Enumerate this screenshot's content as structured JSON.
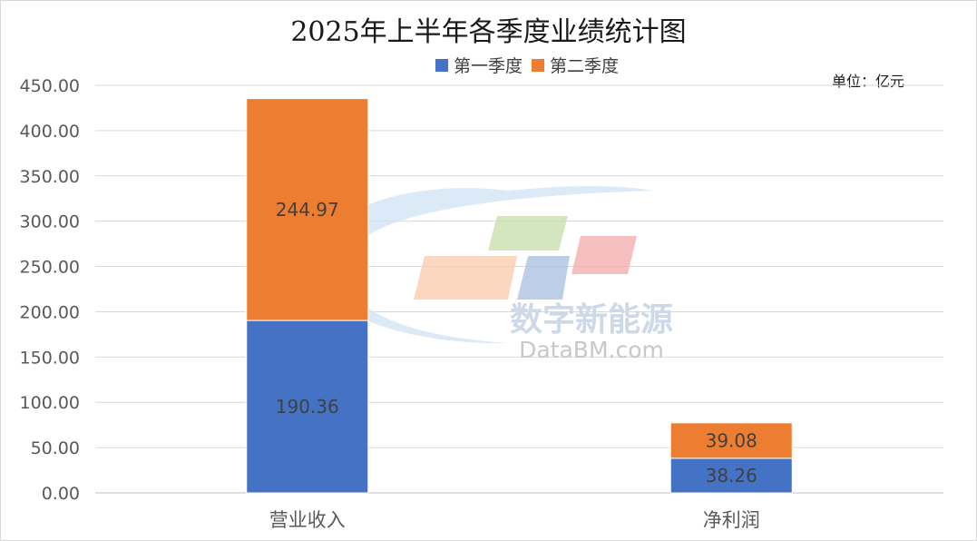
{
  "chart_data": {
    "type": "bar",
    "stacked": true,
    "title": "2025年上半年各季度业绩统计图",
    "unit_label": "单位：亿元",
    "categories": [
      "营业收入",
      "净利润"
    ],
    "series": [
      {
        "name": "第一季度",
        "values": [
          190.36,
          38.26
        ],
        "labels": [
          "190.36",
          "38.26"
        ],
        "color": "#4472c4"
      },
      {
        "name": "第二季度",
        "values": [
          244.97,
          39.08
        ],
        "labels": [
          "244.97",
          "39.08"
        ],
        "color": "#ed7d31"
      }
    ],
    "ylim": [
      0,
      450
    ],
    "yticks": [
      "0.00",
      "50.00",
      "100.00",
      "150.00",
      "200.00",
      "250.00",
      "300.00",
      "350.00",
      "400.00",
      "450.00"
    ],
    "grid": true,
    "legend_position": "top",
    "xlabel": "",
    "ylabel": ""
  },
  "watermark": {
    "cn_text": "数字新能源",
    "en_text": "DataBM.com"
  }
}
